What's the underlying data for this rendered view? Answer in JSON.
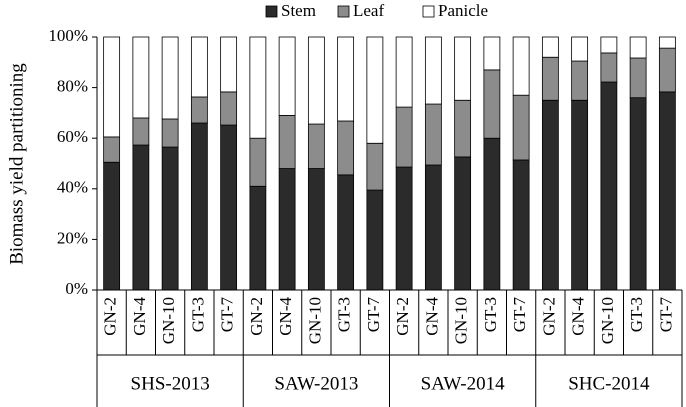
{
  "chart_data": {
    "type": "stacked-bar",
    "ylabel": "Biomass yield partitioning",
    "categories": [
      "GN-2",
      "GN-4",
      "GN-10",
      "GT-3",
      "GT-7",
      "GN-2",
      "GN-4",
      "GN-10",
      "GT-3",
      "GT-7",
      "GN-2",
      "GN-4",
      "GN-10",
      "GT-3",
      "GT-7",
      "GN-2",
      "GN-4",
      "GN-10",
      "GT-3",
      "GT-7"
    ],
    "groups": [
      "SHS-2013",
      "SAW-2013",
      "SAW-2014",
      "SHC-2014"
    ],
    "series": [
      {
        "name": "Stem",
        "color": "#2b2b2b",
        "values": [
          50.5,
          57.3,
          56.5,
          66,
          65.2,
          41,
          48,
          48,
          45.5,
          39.5,
          48.6,
          49.4,
          52.6,
          60,
          51.4,
          75,
          75,
          82.2,
          76,
          78.3
        ]
      },
      {
        "name": "Leaf",
        "color": "#8c8c8c",
        "values": [
          10,
          10.7,
          11.1,
          10.3,
          13.1,
          19,
          21,
          17.6,
          21.3,
          18.5,
          23.7,
          24.1,
          22.4,
          27,
          25.6,
          17,
          15.5,
          11.5,
          15.7,
          17.3
        ]
      },
      {
        "name": "Panicle",
        "color": "#ffffff",
        "values": [
          39.5,
          32,
          32.4,
          23.7,
          21.7,
          40,
          31,
          34.4,
          33.2,
          42,
          27.7,
          26.5,
          25,
          13,
          23,
          8,
          9.5,
          6.3,
          8.3,
          4.4
        ]
      }
    ],
    "ylim": [
      0,
      100
    ],
    "yticks": [
      {
        "value": 0,
        "label": "0%"
      },
      {
        "value": 20,
        "label": "20%"
      },
      {
        "value": 40,
        "label": "40%"
      },
      {
        "value": 60,
        "label": "60%"
      },
      {
        "value": 80,
        "label": "80%"
      },
      {
        "value": 100,
        "label": "100%"
      }
    ],
    "legend": "top"
  }
}
